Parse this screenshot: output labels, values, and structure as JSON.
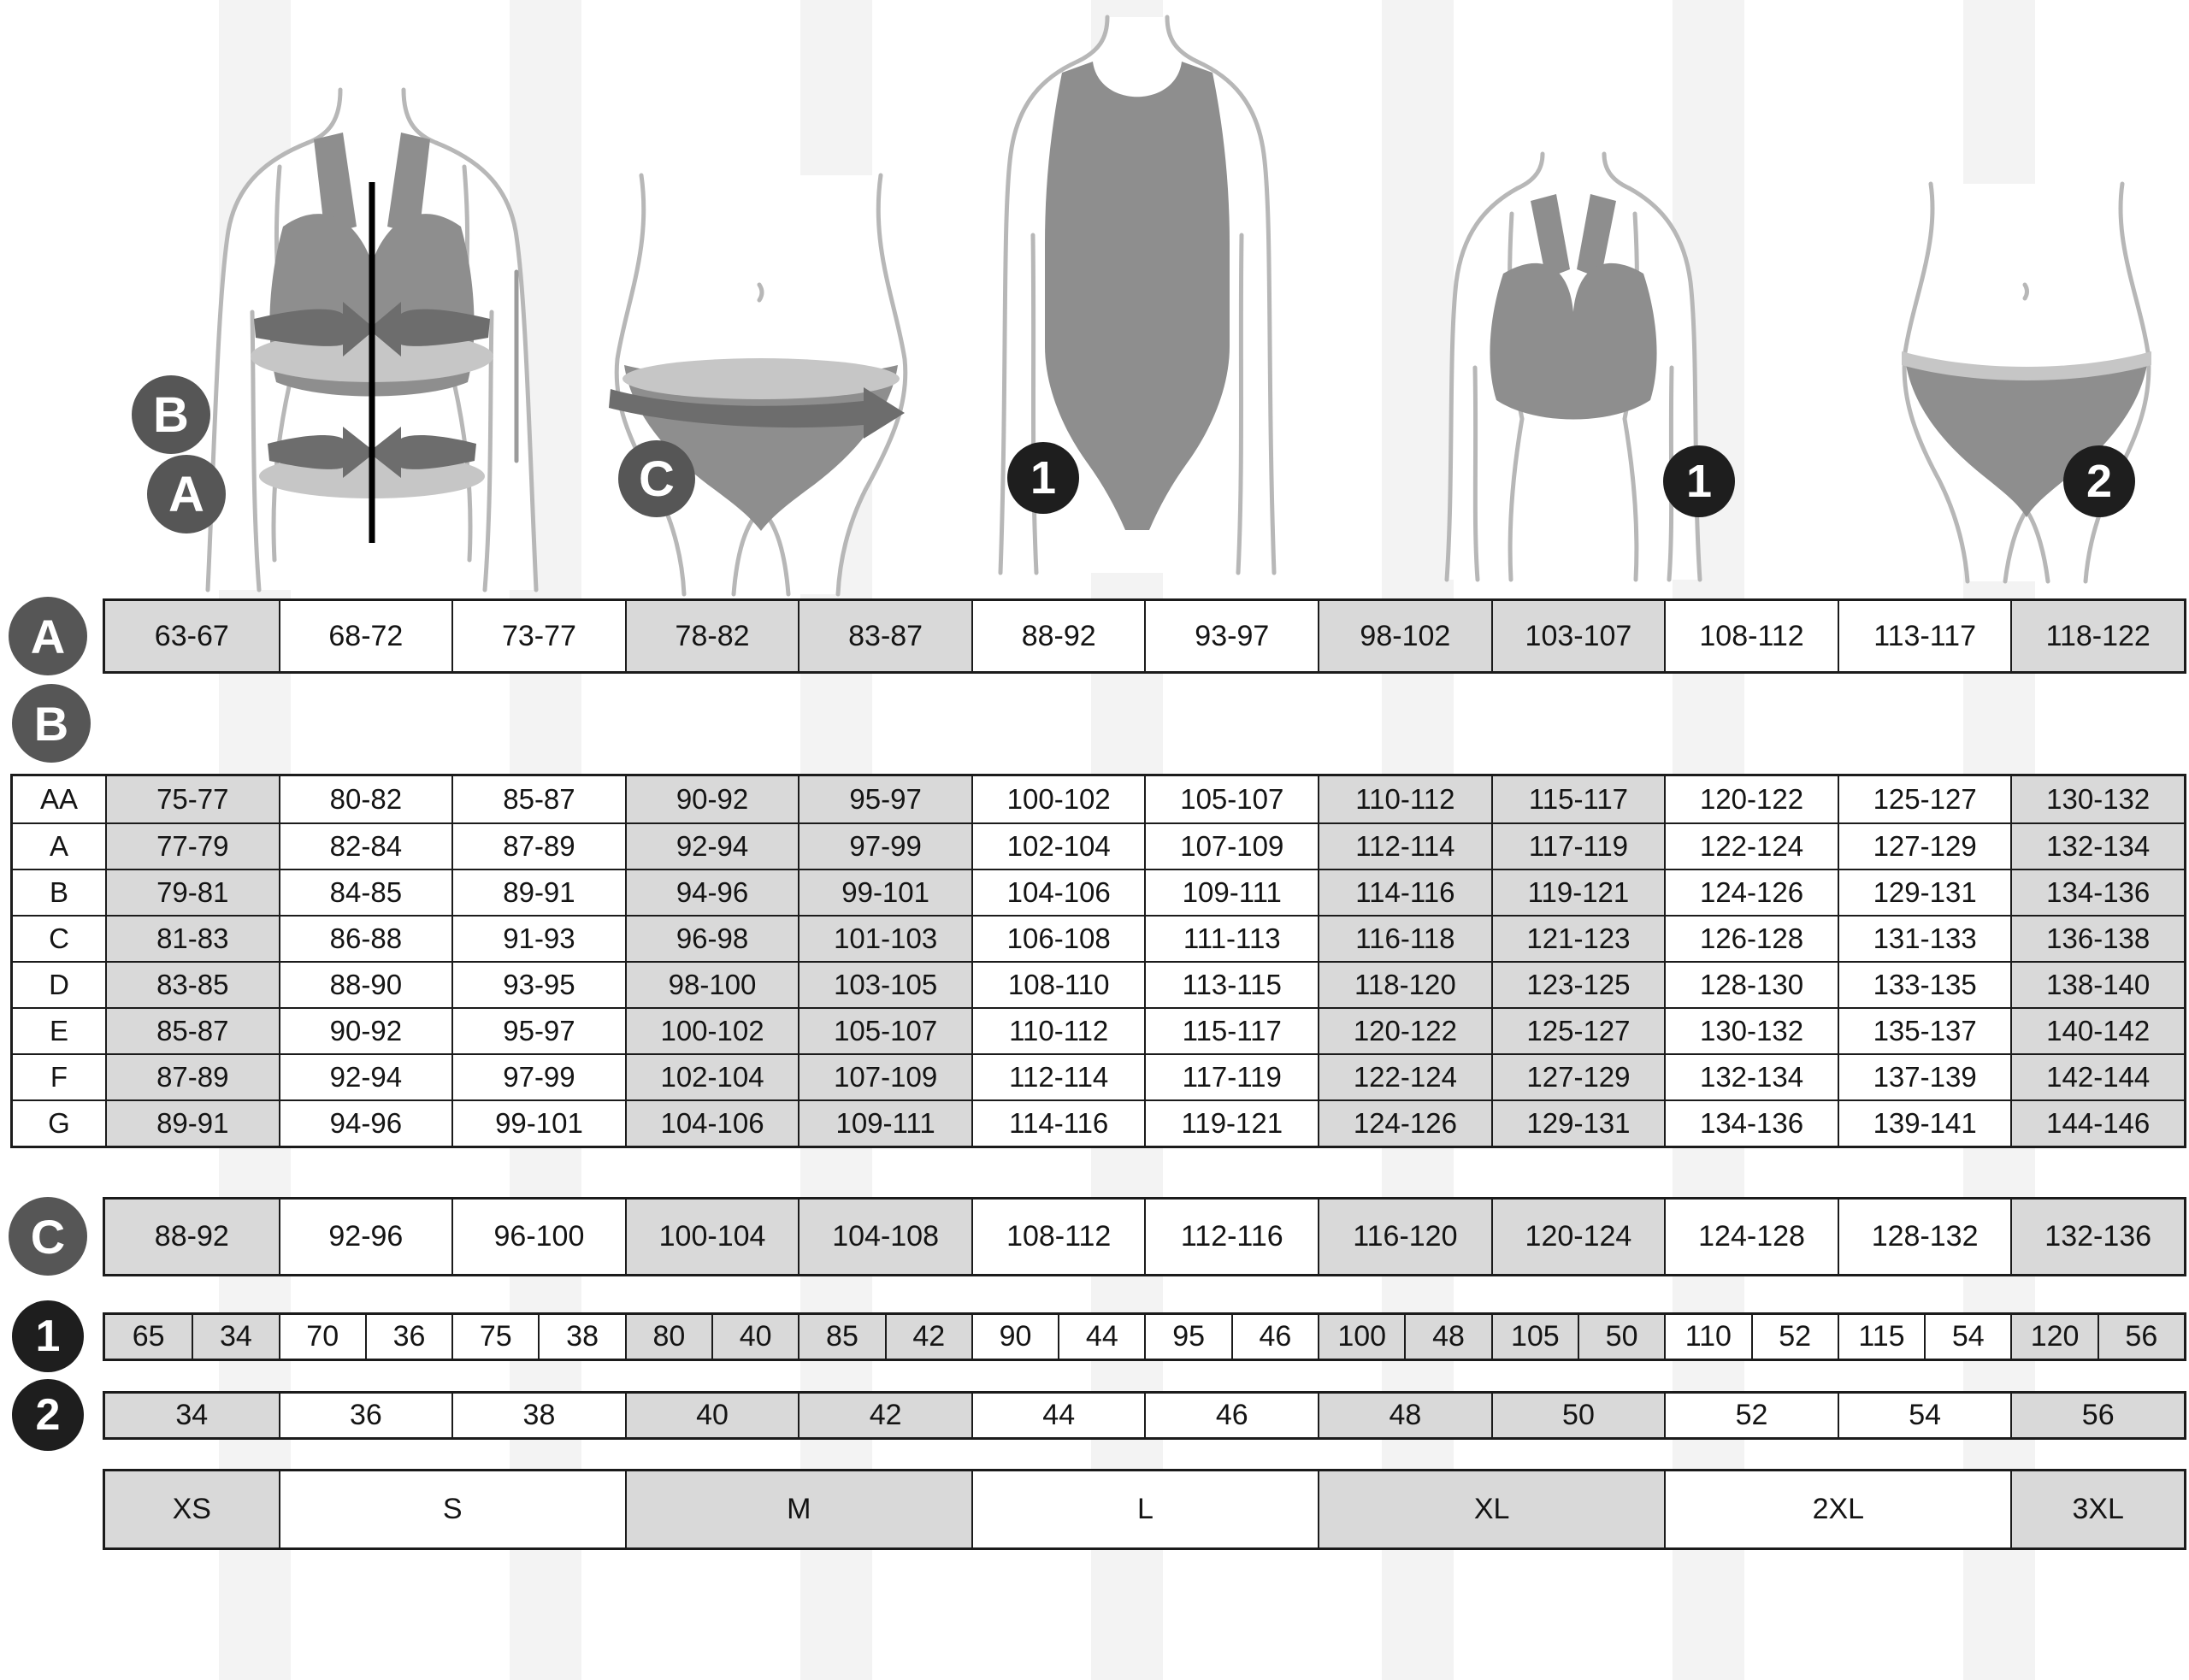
{
  "colors": {
    "cell_shaded": "#d9d9d9",
    "cell_white": "#ffffff",
    "border": "#1b1b1b",
    "marker_letter_bg": "#565656",
    "marker_number_bg": "#1e1e1e",
    "garment_gray": "#8e8e8e",
    "band_dark": "#6d6d6d",
    "band_light": "#c6c6c6",
    "body_outline": "#b7b7b7"
  },
  "shading_pattern": [
    true,
    false,
    false,
    true,
    true,
    false,
    false,
    true,
    true,
    false,
    false,
    true
  ],
  "figures": [
    {
      "name": "bra-measurement-figure",
      "labels": [
        "B",
        "A"
      ]
    },
    {
      "name": "hips-measurement-figure",
      "labels": [
        "C"
      ]
    },
    {
      "name": "bodysuit-figure",
      "labels": [
        "1"
      ]
    },
    {
      "name": "bra-product-figure",
      "labels": [
        "1"
      ]
    },
    {
      "name": "panties-product-figure",
      "labels": [
        "2"
      ]
    }
  ],
  "row_a": {
    "marker": "A",
    "values": [
      "63-67",
      "68-72",
      "73-77",
      "78-82",
      "83-87",
      "88-92",
      "93-97",
      "98-102",
      "103-107",
      "108-112",
      "113-117",
      "118-122"
    ]
  },
  "table_b": {
    "marker": "B",
    "rows": [
      {
        "label": "AA",
        "values": [
          "75-77",
          "80-82",
          "85-87",
          "90-92",
          "95-97",
          "100-102",
          "105-107",
          "110-112",
          "115-117",
          "120-122",
          "125-127",
          "130-132"
        ]
      },
      {
        "label": "A",
        "values": [
          "77-79",
          "82-84",
          "87-89",
          "92-94",
          "97-99",
          "102-104",
          "107-109",
          "112-114",
          "117-119",
          "122-124",
          "127-129",
          "132-134"
        ]
      },
      {
        "label": "B",
        "values": [
          "79-81",
          "84-85",
          "89-91",
          "94-96",
          "99-101",
          "104-106",
          "109-111",
          "114-116",
          "119-121",
          "124-126",
          "129-131",
          "134-136"
        ]
      },
      {
        "label": "C",
        "values": [
          "81-83",
          "86-88",
          "91-93",
          "96-98",
          "101-103",
          "106-108",
          "111-113",
          "116-118",
          "121-123",
          "126-128",
          "131-133",
          "136-138"
        ]
      },
      {
        "label": "D",
        "values": [
          "83-85",
          "88-90",
          "93-95",
          "98-100",
          "103-105",
          "108-110",
          "113-115",
          "118-120",
          "123-125",
          "128-130",
          "133-135",
          "138-140"
        ]
      },
      {
        "label": "E",
        "values": [
          "85-87",
          "90-92",
          "95-97",
          "100-102",
          "105-107",
          "110-112",
          "115-117",
          "120-122",
          "125-127",
          "130-132",
          "135-137",
          "140-142"
        ]
      },
      {
        "label": "F",
        "values": [
          "87-89",
          "92-94",
          "97-99",
          "102-104",
          "107-109",
          "112-114",
          "117-119",
          "122-124",
          "127-129",
          "132-134",
          "137-139",
          "142-144"
        ]
      },
      {
        "label": "G",
        "values": [
          "89-91",
          "94-96",
          "99-101",
          "104-106",
          "109-111",
          "114-116",
          "119-121",
          "124-126",
          "129-131",
          "134-136",
          "139-141",
          "144-146"
        ]
      }
    ]
  },
  "row_c": {
    "marker": "C",
    "values": [
      "88-92",
      "92-96",
      "96-100",
      "100-104",
      "104-108",
      "108-112",
      "112-116",
      "116-120",
      "120-124",
      "124-128",
      "128-132",
      "132-136"
    ]
  },
  "row_1": {
    "marker": "1",
    "pairs": [
      [
        "65",
        "34"
      ],
      [
        "70",
        "36"
      ],
      [
        "75",
        "38"
      ],
      [
        "80",
        "40"
      ],
      [
        "85",
        "42"
      ],
      [
        "90",
        "44"
      ],
      [
        "95",
        "46"
      ],
      [
        "100",
        "48"
      ],
      [
        "105",
        "50"
      ],
      [
        "110",
        "52"
      ],
      [
        "115",
        "54"
      ],
      [
        "120",
        "56"
      ]
    ]
  },
  "row_2": {
    "marker": "2",
    "values": [
      "34",
      "36",
      "38",
      "40",
      "42",
      "44",
      "46",
      "48",
      "50",
      "52",
      "54",
      "56"
    ]
  },
  "row_sizes": {
    "values": [
      {
        "label": "XS",
        "span": 1,
        "shaded": true
      },
      {
        "label": "S",
        "span": 2,
        "shaded": false
      },
      {
        "label": "M",
        "span": 2,
        "shaded": true
      },
      {
        "label": "L",
        "span": 2,
        "shaded": false
      },
      {
        "label": "XL",
        "span": 2,
        "shaded": true
      },
      {
        "label": "2XL",
        "span": 2,
        "shaded": false
      },
      {
        "label": "3XL",
        "span": 1,
        "shaded": true
      }
    ]
  }
}
